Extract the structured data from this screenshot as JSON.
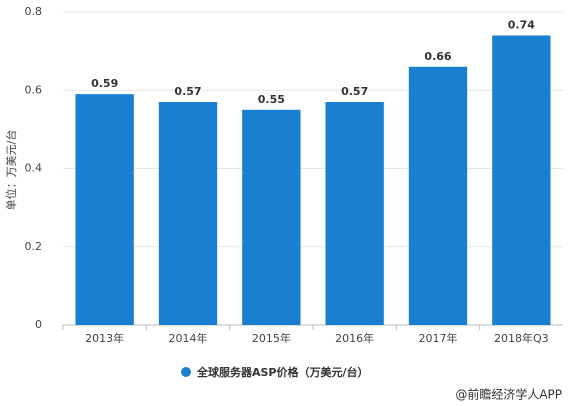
{
  "chart_data": {
    "type": "bar",
    "y_label": "单位：万美元/台",
    "categories": [
      "2013年",
      "2014年",
      "2015年",
      "2016年",
      "2017年",
      "2018年Q3"
    ],
    "series": [
      {
        "name": "全球服务器ASP价格（万美元/台）",
        "color": "#1a7fd1",
        "values": [
          0.59,
          0.57,
          0.55,
          0.57,
          0.66,
          0.74
        ]
      }
    ],
    "ylim": [
      0,
      0.8
    ],
    "yticks": [
      0,
      0.2,
      0.4,
      0.6,
      0.8
    ],
    "grid": true,
    "source": "@前瞻经济学人APP"
  }
}
